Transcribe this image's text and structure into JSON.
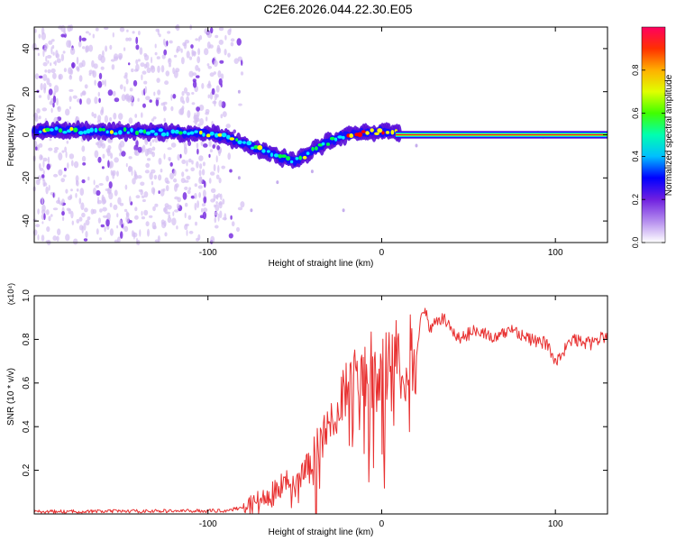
{
  "title": "C2E6.2026.044.22.30.E05",
  "chart_data": [
    {
      "type": "heatmap",
      "name": "spectrogram",
      "xlabel": "Height of straight line (km)",
      "ylabel": "Frequency (Hz)",
      "xlim": [
        -200,
        130
      ],
      "ylim": [
        -50,
        50
      ],
      "xticks": [
        -100,
        0,
        100
      ],
      "yticks": [
        -40,
        -20,
        0,
        20,
        40
      ],
      "colorbar": {
        "label": "Normalized spectral amplitude",
        "range": [
          0,
          1
        ],
        "ticks": [
          "0.0",
          "0.2",
          "0.4",
          "0.6",
          "0.8"
        ]
      },
      "ridge": {
        "x": [
          -200,
          -180,
          -160,
          -140,
          -120,
          -100,
          -90,
          -80,
          -70,
          -60,
          -50,
          -45,
          -40,
          -35,
          -30,
          -20,
          -10,
          0,
          5,
          8,
          10,
          130
        ],
        "y": [
          2,
          2,
          1.5,
          1.5,
          1,
          0.5,
          -1,
          -4,
          -7,
          -10,
          -12,
          -10,
          -7,
          -5,
          -3,
          0,
          1,
          1.5,
          1.5,
          1,
          0,
          0
        ]
      },
      "color_stops": [
        "#d8c8f0",
        "#9a5ee8",
        "#5a10d8",
        "#1010ff",
        "#00e8ff",
        "#00ff40",
        "#ffff00",
        "#ff8000",
        "#ff0000",
        "#ff0080"
      ]
    },
    {
      "type": "line",
      "name": "snr",
      "xlabel": "Height of straight line (km)",
      "ylabel": "SNR (10 * v/v)",
      "scale_label": "(x10⁴)",
      "xlim": [
        -200,
        130
      ],
      "ylim": [
        0,
        1.0
      ],
      "xticks": [
        -100,
        0,
        100
      ],
      "yticks": [
        "0.2",
        "0.4",
        "0.6",
        "0.8",
        "1.0"
      ],
      "series": [
        {
          "name": "SNR",
          "color": "#e83030",
          "x": [
            -200,
            -90,
            -80,
            -70,
            -60,
            -50,
            -40,
            -35,
            -30,
            -25,
            -20,
            -15,
            -10,
            -5,
            0,
            5,
            10,
            15,
            20,
            24,
            28,
            35,
            45,
            55,
            65,
            75,
            85,
            95,
            100,
            110,
            120,
            130
          ],
          "y": [
            0.01,
            0.015,
            0.03,
            0.06,
            0.1,
            0.15,
            0.25,
            0.32,
            0.4,
            0.5,
            0.58,
            0.62,
            0.6,
            0.62,
            0.65,
            0.62,
            0.66,
            0.7,
            0.75,
            0.95,
            0.85,
            0.9,
            0.8,
            0.85,
            0.8,
            0.85,
            0.8,
            0.78,
            0.7,
            0.8,
            0.78,
            0.82
          ]
        }
      ]
    }
  ]
}
